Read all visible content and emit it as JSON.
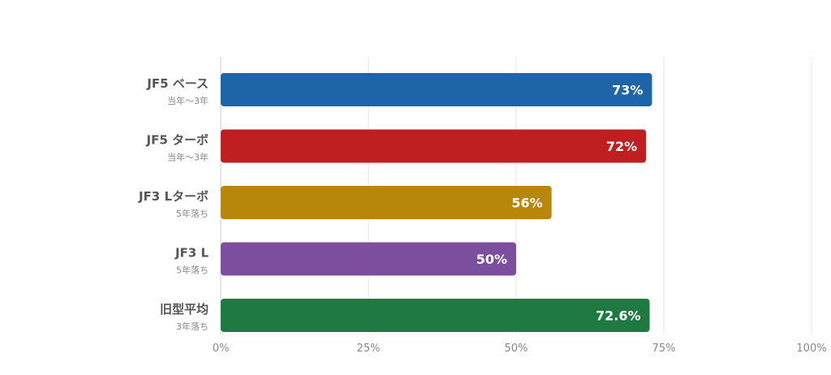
{
  "chart_data": {
    "type": "bar",
    "orientation": "horizontal",
    "categories": [
      "JF5 ベース",
      "JF5 ターボ",
      "JF3 Lターボ",
      "JF3 L",
      "旧型平均"
    ],
    "subtitles": [
      "当年〜3年",
      "当年〜3年",
      "5年落ち",
      "5年落ち",
      "3年落ち"
    ],
    "values": [
      73,
      72,
      56,
      50,
      72.6
    ],
    "value_labels": [
      "73%",
      "72%",
      "56%",
      "50%",
      "72.6%"
    ],
    "colors": [
      "#1d64a8",
      "#bf1f21",
      "#b8860b",
      "#7b4f9e",
      "#1e7a40"
    ],
    "xlim": [
      0,
      100
    ],
    "xticks": [
      0,
      25,
      50,
      75,
      100
    ],
    "xtick_labels": [
      "0%",
      "25%",
      "50%",
      "75%",
      "100%"
    ],
    "grid": true,
    "title": "",
    "xlabel": "",
    "ylabel": ""
  }
}
